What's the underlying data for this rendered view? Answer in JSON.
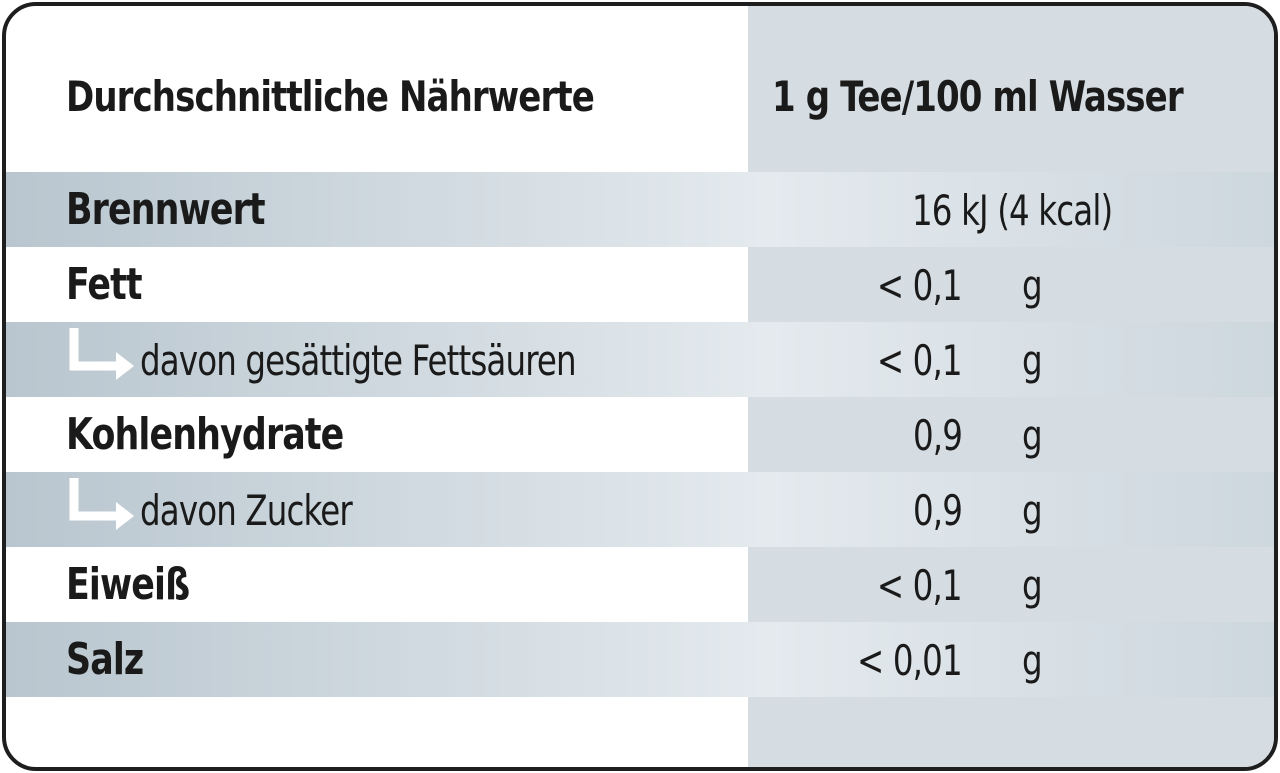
{
  "table": {
    "header": {
      "label": "Durchschnittliche Nährwerte",
      "value": "1 g Tee/100 ml Wasser"
    },
    "energy": {
      "label": "Brennwert",
      "value": "16 kJ (4 kcal)"
    },
    "rows": [
      {
        "label": "Fett",
        "amount": "< 0,1",
        "unit": "g"
      },
      {
        "label": "davon gesättigte Fettsäuren",
        "amount": "< 0,1",
        "unit": "g"
      },
      {
        "label": "Kohlenhydrate",
        "amount": "0,9",
        "unit": "g"
      },
      {
        "label": "davon Zucker",
        "amount": "0,9",
        "unit": "g"
      },
      {
        "label": "Eiweiß",
        "amount": "< 0,1",
        "unit": "g"
      },
      {
        "label": "Salz",
        "amount": "< 0,01",
        "unit": "g"
      }
    ],
    "icons": {
      "sub_item": "sub-item-arrow-icon"
    },
    "colors": {
      "border": "#1e1e1e",
      "shade": "#d5dde3",
      "row_gradient_dark": "#b9c6cf",
      "row_gradient_light": "#e4eaee",
      "arrow": "#ffffff"
    }
  }
}
